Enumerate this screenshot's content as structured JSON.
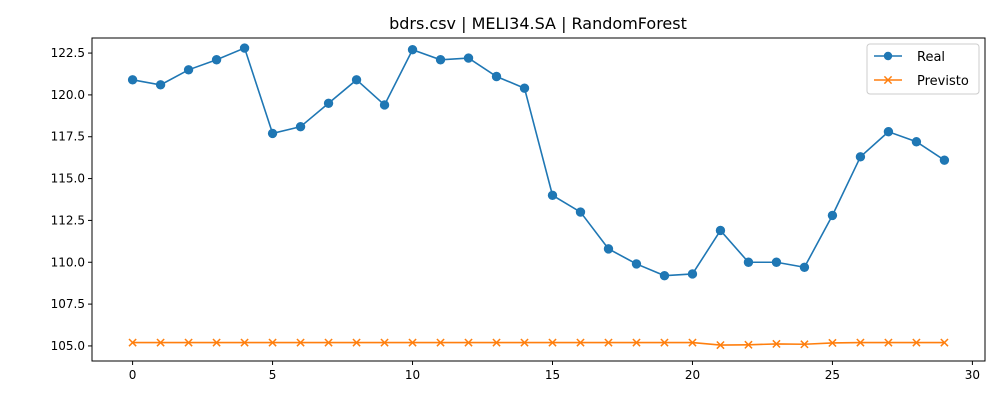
{
  "chart_data": {
    "type": "line",
    "title": "bdrs.csv | MELI34.SA | RandomForest",
    "xlabel": "",
    "ylabel": "",
    "xlim": [
      -1.45,
      30.45
    ],
    "ylim": [
      104.1,
      123.4
    ],
    "xticks": [
      0,
      5,
      10,
      15,
      20,
      25,
      30
    ],
    "yticks": [
      105.0,
      107.5,
      110.0,
      112.5,
      115.0,
      117.5,
      120.0,
      122.5
    ],
    "grid": false,
    "legend_position": "top-right",
    "x": [
      0,
      1,
      2,
      3,
      4,
      5,
      6,
      7,
      8,
      9,
      10,
      11,
      12,
      13,
      14,
      15,
      16,
      17,
      18,
      19,
      20,
      21,
      22,
      23,
      24,
      25,
      26,
      27,
      28,
      29
    ],
    "series": [
      {
        "name": "Real",
        "color": "#1f77b4",
        "marker": "circle",
        "values": [
          120.9,
          120.6,
          121.5,
          122.1,
          122.8,
          117.7,
          118.1,
          119.5,
          120.9,
          119.4,
          122.7,
          122.1,
          122.2,
          121.1,
          120.4,
          114.0,
          113.0,
          110.8,
          109.9,
          109.2,
          109.3,
          111.9,
          110.0,
          110.0,
          109.7,
          112.8,
          116.3,
          117.8,
          117.2,
          116.1
        ]
      },
      {
        "name": "Previsto",
        "color": "#ff7f0e",
        "marker": "x",
        "values": [
          105.2,
          105.2,
          105.2,
          105.2,
          105.2,
          105.2,
          105.2,
          105.2,
          105.2,
          105.2,
          105.2,
          105.2,
          105.2,
          105.2,
          105.2,
          105.2,
          105.2,
          105.2,
          105.2,
          105.2,
          105.2,
          105.05,
          105.07,
          105.12,
          105.1,
          105.18,
          105.2,
          105.2,
          105.2,
          105.2
        ]
      }
    ]
  }
}
